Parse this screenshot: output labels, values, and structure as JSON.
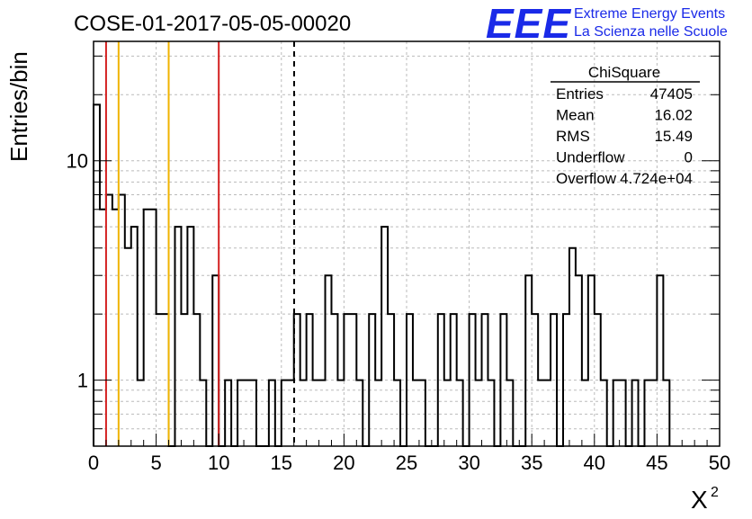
{
  "chart_data": {
    "type": "histogram",
    "title": "COSE-01-2017-05-05-00020",
    "xlabel": "X",
    "xlabel_superscript": "2",
    "ylabel": "Entries/bin",
    "xlim": [
      0,
      50
    ],
    "ylim": [
      0.5,
      35
    ],
    "yscale": "log",
    "grid": true,
    "xticks": [
      0,
      5,
      10,
      15,
      20,
      25,
      30,
      35,
      40,
      45,
      50
    ],
    "xtick_labels": [
      "0",
      "5",
      "10",
      "15",
      "20",
      "25",
      "30",
      "35",
      "40",
      "45",
      "50"
    ],
    "yticks": [
      1,
      10
    ],
    "ytick_labels": [
      "1",
      "10"
    ],
    "bin_width": 0.5,
    "bins_x_start": 0,
    "values": [
      18,
      6,
      7,
      6,
      7,
      4,
      5,
      1,
      6,
      6,
      2,
      2,
      0,
      5,
      2,
      5,
      2,
      1,
      0,
      3,
      0,
      1,
      0,
      1,
      1,
      1,
      0,
      0,
      1,
      0,
      1,
      1,
      2,
      1,
      2,
      1,
      1,
      3,
      2,
      1,
      2,
      2,
      1,
      0,
      2,
      1,
      5,
      2,
      1,
      0,
      2,
      1,
      1,
      0,
      0,
      2,
      1,
      2,
      1,
      0,
      2,
      1,
      2,
      1,
      0,
      2,
      1,
      0,
      0,
      3,
      2,
      1,
      1,
      2,
      0,
      2,
      4,
      3,
      1,
      3,
      2,
      1,
      0,
      1,
      1,
      0,
      1,
      0,
      1,
      1,
      3,
      1
    ],
    "vertical_lines": [
      {
        "x": 1,
        "color": "#d42020",
        "style": "solid"
      },
      {
        "x": 2,
        "color": "#f0b400",
        "style": "solid"
      },
      {
        "x": 6,
        "color": "#f0b400",
        "style": "solid"
      },
      {
        "x": 10,
        "color": "#d42020",
        "style": "solid"
      },
      {
        "x": 16.02,
        "color": "#000000",
        "style": "dashed"
      }
    ],
    "stats_box": {
      "title": "ChiSquare",
      "rows": [
        {
          "label": "Entries",
          "value": "47405"
        },
        {
          "label": "Mean",
          "value": "16.02"
        },
        {
          "label": "RMS",
          "value": "15.49"
        },
        {
          "label": "Underflow",
          "value": "0"
        },
        {
          "label": "Overflow",
          "value": "4.724e+04"
        }
      ]
    }
  },
  "logo": {
    "mark": "EEE",
    "line1": "Extreme Energy Events",
    "line2": "La Scienza nelle Scuole",
    "color": "#1a2ae8"
  }
}
